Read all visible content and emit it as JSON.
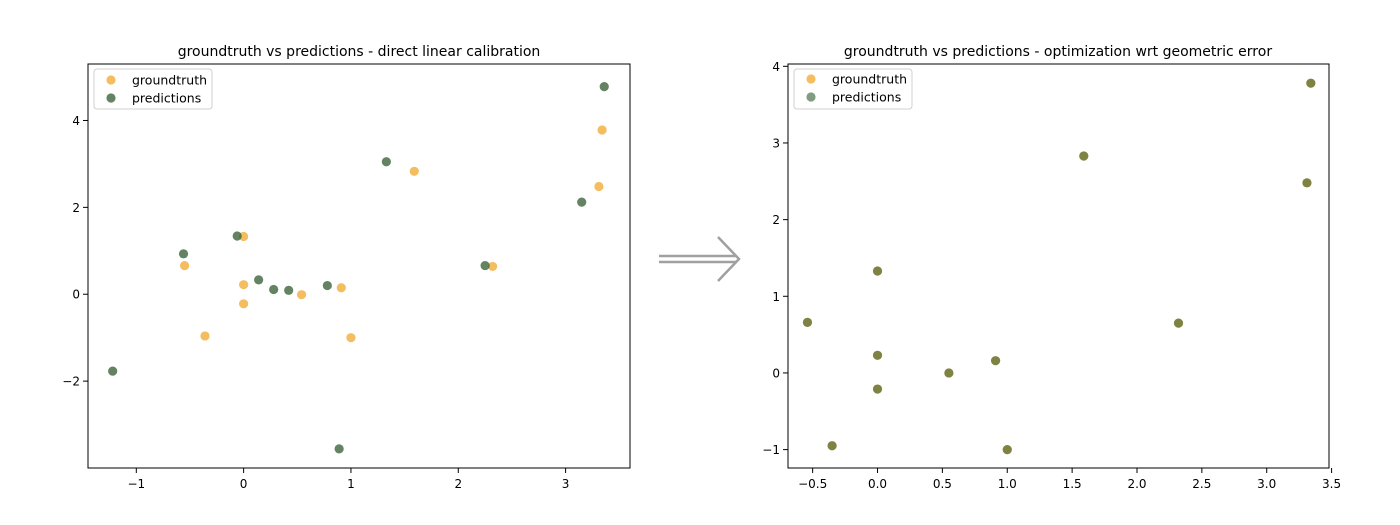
{
  "colors": {
    "groundtruth": "#f3b74f",
    "predictions": "#2f5a2f",
    "arrow": "#a0a0a0"
  },
  "chart_data": [
    {
      "type": "scatter",
      "title": "groundtruth vs predictions - direct linear calibration",
      "xlabel": "",
      "ylabel": "",
      "xlim": [
        -1.45,
        3.6
      ],
      "ylim": [
        -4.0,
        5.3
      ],
      "xticks": [
        -1,
        0,
        1,
        2,
        3
      ],
      "yticks": [
        -2,
        0,
        2,
        4
      ],
      "xtick_labels": [
        "−1",
        "0",
        "1",
        "2",
        "3"
      ],
      "ytick_labels": [
        "−2",
        "0",
        "2",
        "4"
      ],
      "legend": "top-left",
      "grid": false,
      "series": [
        {
          "name": "groundtruth",
          "color": "#f3b74f",
          "alpha": 0.9,
          "points": [
            [
              -0.55,
              0.66
            ],
            [
              -0.36,
              -0.96
            ],
            [
              0.0,
              1.33
            ],
            [
              0.0,
              0.22
            ],
            [
              0.0,
              -0.22
            ],
            [
              0.54,
              -0.01
            ],
            [
              0.91,
              0.15
            ],
            [
              1.0,
              -1.0
            ],
            [
              1.59,
              2.83
            ],
            [
              2.32,
              0.64
            ],
            [
              3.31,
              2.48
            ],
            [
              3.34,
              3.78
            ]
          ]
        },
        {
          "name": "predictions",
          "color": "#2f5a2f",
          "alpha": 0.75,
          "points": [
            [
              -1.22,
              -1.77
            ],
            [
              -0.56,
              0.93
            ],
            [
              -0.06,
              1.34
            ],
            [
              0.14,
              0.33
            ],
            [
              0.28,
              0.11
            ],
            [
              0.42,
              0.09
            ],
            [
              0.78,
              0.2
            ],
            [
              0.89,
              -3.56
            ],
            [
              1.33,
              3.05
            ],
            [
              2.25,
              0.66
            ],
            [
              3.15,
              2.12
            ],
            [
              3.36,
              4.78
            ]
          ]
        }
      ]
    },
    {
      "type": "scatter",
      "title": "groundtruth vs predictions - optimization wrt geometric error",
      "xlabel": "",
      "ylabel": "",
      "xlim": [
        -0.69,
        3.48
      ],
      "ylim": [
        -1.24,
        4.03
      ],
      "xticks": [
        -0.5,
        0.0,
        0.5,
        1.0,
        1.5,
        2.0,
        2.5,
        3.0,
        3.5
      ],
      "yticks": [
        -1,
        0,
        1,
        2,
        3,
        4
      ],
      "xtick_labels": [
        "−0.5",
        "0.0",
        "0.5",
        "1.0",
        "1.5",
        "2.0",
        "2.5",
        "3.0",
        "3.5"
      ],
      "ytick_labels": [
        "−1",
        "0",
        "1",
        "2",
        "3",
        "4"
      ],
      "legend": "top-left",
      "grid": false,
      "series": [
        {
          "name": "groundtruth",
          "color": "#f3b74f",
          "alpha": 0.9,
          "points": [
            [
              -0.54,
              0.66
            ],
            [
              -0.35,
              -0.95
            ],
            [
              0.0,
              1.33
            ],
            [
              0.0,
              0.23
            ],
            [
              0.0,
              -0.21
            ],
            [
              0.55,
              0.0
            ],
            [
              0.91,
              0.16
            ],
            [
              1.0,
              -1.0
            ],
            [
              1.59,
              2.83
            ],
            [
              2.32,
              0.65
            ],
            [
              3.31,
              2.48
            ],
            [
              3.34,
              3.78
            ]
          ]
        },
        {
          "name": "predictions",
          "color": "#2f5a2f",
          "alpha": 0.6,
          "points": [
            [
              -0.54,
              0.66
            ],
            [
              -0.35,
              -0.95
            ],
            [
              0.0,
              1.33
            ],
            [
              0.0,
              0.23
            ],
            [
              0.0,
              -0.21
            ],
            [
              0.55,
              0.0
            ],
            [
              0.91,
              0.16
            ],
            [
              1.0,
              -1.0
            ],
            [
              1.59,
              2.83
            ],
            [
              2.32,
              0.65
            ],
            [
              3.31,
              2.48
            ],
            [
              3.34,
              3.78
            ]
          ]
        }
      ]
    }
  ]
}
